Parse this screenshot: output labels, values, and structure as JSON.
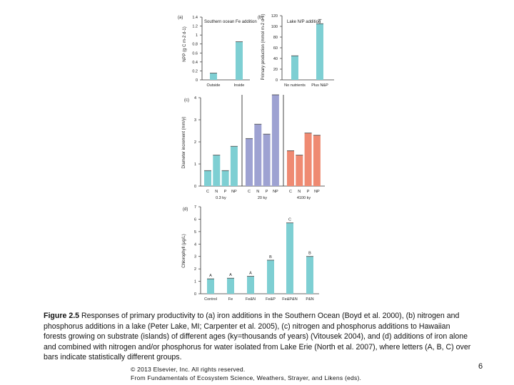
{
  "chart_data": [
    {
      "type": "bar",
      "panel": "(a)",
      "legend": "Southern ocean Fe addition",
      "ylabel": "NPP (g C m-2 d-1)",
      "ylim": [
        0,
        1.4
      ],
      "yticks": [
        0,
        0.2,
        0.4,
        0.6,
        0.8,
        1.0,
        1.2,
        1.4
      ],
      "categories": [
        "Outside",
        "Inside"
      ],
      "values": [
        0.15,
        0.85
      ],
      "color": "#7ecfd3"
    },
    {
      "type": "bar",
      "panel": "(b)",
      "legend": "Lake N/P addition",
      "ylabel": "Primary production (mmol m-2 d-1)",
      "ylim": [
        0,
        120
      ],
      "yticks": [
        0,
        20,
        40,
        60,
        80,
        100,
        120
      ],
      "categories": [
        "No nutrients",
        "Plus N&P"
      ],
      "values": [
        45,
        105
      ],
      "error_upper": [
        0,
        113
      ],
      "color": "#7ecfd3"
    },
    {
      "type": "bar",
      "panel": "(c)",
      "ylabel": "Diameter increment (mm/y)",
      "ylim": [
        0,
        4
      ],
      "yticks": [
        0,
        1,
        2,
        3,
        4
      ],
      "groups": [
        {
          "label": "0.3 ky",
          "categories": [
            "C",
            "N",
            "P",
            "NP"
          ],
          "values": [
            0.7,
            1.4,
            0.7,
            1.8
          ],
          "color": "#7ecfd3"
        },
        {
          "label": "20 ky",
          "categories": [
            "C",
            "N",
            "P",
            "NP"
          ],
          "values": [
            2.15,
            2.8,
            2.35,
            4.2
          ],
          "color": "#9ea2d2"
        },
        {
          "label": "4100 ky",
          "categories": [
            "C",
            "N",
            "P",
            "NP"
          ],
          "values": [
            1.6,
            1.4,
            2.4,
            2.3
          ],
          "color": "#ef8a72"
        }
      ]
    },
    {
      "type": "bar",
      "panel": "(d)",
      "ylabel": "Chlorophyll (μg/L)",
      "ylim": [
        0,
        7
      ],
      "yticks": [
        0,
        1,
        2,
        3,
        4,
        5,
        6,
        7
      ],
      "categories": [
        "Control",
        "Fe",
        "Fe&N",
        "Fe&P",
        "Fe&P&N",
        "P&N"
      ],
      "values": [
        1.2,
        1.25,
        1.4,
        2.7,
        5.7,
        3.0
      ],
      "group_letters": [
        "A",
        "A",
        "A",
        "B",
        "C",
        "B"
      ],
      "color": "#7ecfd3"
    }
  ],
  "caption": {
    "label": "Figure 2.5",
    "text": "Responses of primary productivity to (a) iron additions in the Southern Ocean (Boyd et al. 2000), (b) nitrogen and phosphorus additions in a lake (Peter Lake, MI; Carpenter et al. 2005), (c) nitrogen and phosphorus additions to Hawaiian forests growing on substrate (islands) of different ages (ky=thousands of years) (Vitousek 2004), and (d) additions of iron alone and combined with nitrogen and/or phosphorus for water isolated from Lake Erie (North et al. 2007), where letters (A, B, C) over bars indicate statistically different groups."
  },
  "footer": {
    "copyright": "© 2013 Elsevier, Inc. All rights reserved.",
    "source": "From Fundamentals of Ecosystem Science, Weathers, Strayer, and Likens (eds).",
    "page_number": "6"
  }
}
